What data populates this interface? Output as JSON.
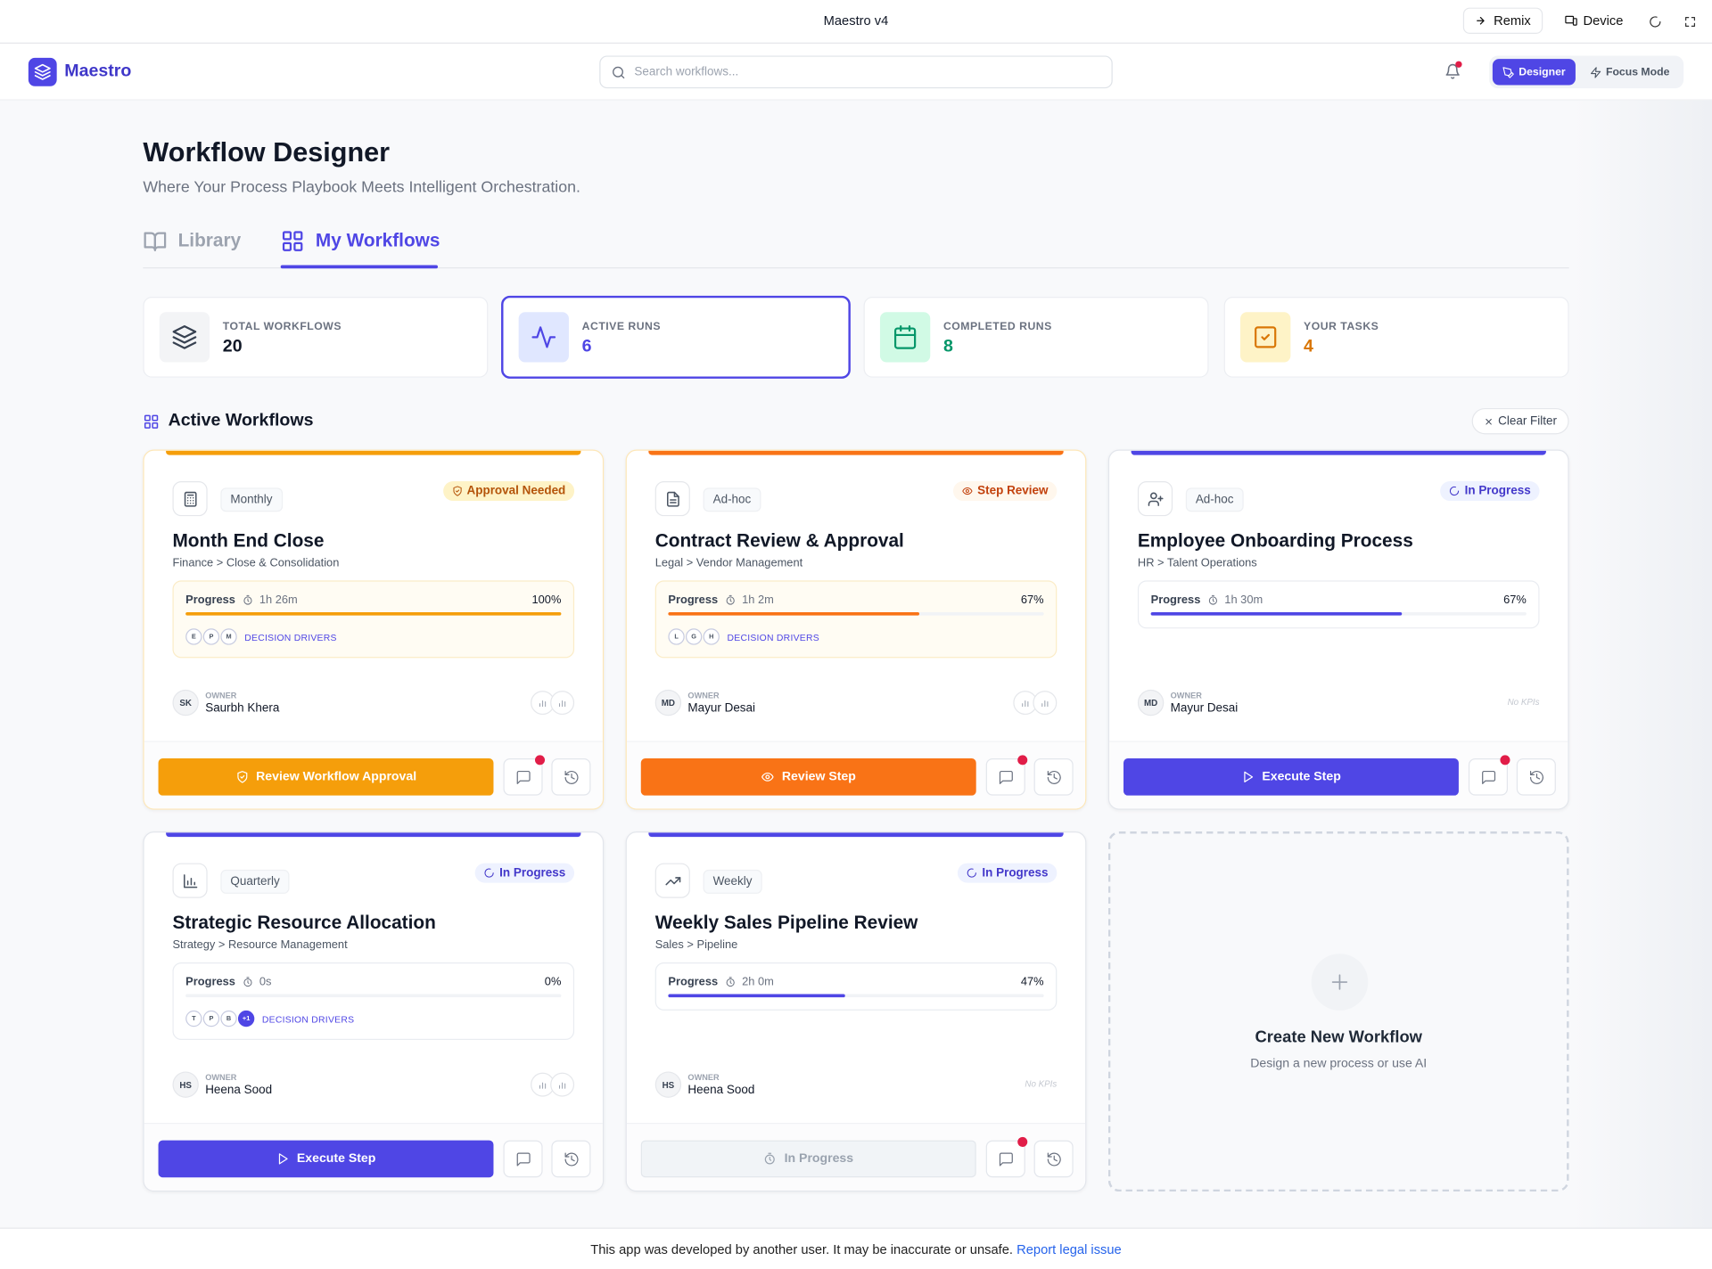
{
  "top_bar": {
    "app_title": "Maestro v4",
    "buttons": [
      "Remix",
      "Device"
    ]
  },
  "header": {
    "brand": "Maestro",
    "search_placeholder": "Search workflows...",
    "modes": [
      "Designer",
      "Focus Mode"
    ]
  },
  "page": {
    "title": "Workflow Designer",
    "subtitle": "Where Your Process Playbook Meets Intelligent Orchestration.",
    "tabs": [
      "Library",
      "My Workflows"
    ]
  },
  "stats": [
    {
      "label": "TOTAL WORKFLOWS",
      "value": 20,
      "color": "#111827"
    },
    {
      "label": "ACTIVE RUNS",
      "value": 6,
      "color": "#4f46e5"
    },
    {
      "label": "COMPLETED RUNS",
      "value": 8,
      "color": "#059669"
    },
    {
      "label": "YOUR TASKS",
      "value": 4,
      "color": "#d97706"
    }
  ],
  "section": {
    "title": "Active Workflows",
    "clear_filter": "Clear Filter"
  },
  "workflows": [
    {
      "frequency": "Monthly",
      "badge": "Approval Needed",
      "title": "Month End Close",
      "path": "Finance > Close & Consolidation",
      "progress_label": "Progress",
      "duration": "1h 26m",
      "progress": "100%",
      "drivers": [
        "E",
        "P",
        "M"
      ],
      "drivers_label": "DECISION DRIVERS",
      "owner_initials": "SK",
      "owner_label": "OWNER",
      "owner": "Saurbh Khera",
      "action": "Review Workflow Approval",
      "accent": "#f59e0b",
      "unread": true
    },
    {
      "frequency": "Ad-hoc",
      "badge": "Step Review",
      "title": "Contract Review & Approval",
      "path": "Legal > Vendor Management",
      "progress_label": "Progress",
      "duration": "1h 2m",
      "progress": "67%",
      "drivers": [
        "L",
        "G",
        "H"
      ],
      "drivers_label": "DECISION DRIVERS",
      "owner_initials": "MD",
      "owner_label": "OWNER",
      "owner": "Mayur Desai",
      "action": "Review Step",
      "accent": "#f97316",
      "unread": true
    },
    {
      "frequency": "Ad-hoc",
      "badge": "In Progress",
      "title": "Employee Onboarding Process",
      "path": "HR > Talent Operations",
      "progress_label": "Progress",
      "duration": "1h 30m",
      "progress": "67%",
      "owner_initials": "MD",
      "owner_label": "OWNER",
      "owner": "Mayur Desai",
      "kpi": "No KPIs",
      "action": "Execute Step",
      "accent": "#4f46e5",
      "unread": true
    },
    {
      "frequency": "Quarterly",
      "badge": "In Progress",
      "title": "Strategic Resource Allocation",
      "path": "Strategy > Resource Management",
      "progress_label": "Progress",
      "duration": "0s",
      "progress": "0%",
      "drivers": [
        "T",
        "P",
        "B",
        "+1"
      ],
      "drivers_label": "DECISION DRIVERS",
      "owner_initials": "HS",
      "owner_label": "OWNER",
      "owner": "Heena Sood",
      "action": "Execute Step",
      "accent": "#4f46e5",
      "unread": false
    },
    {
      "frequency": "Weekly",
      "badge": "In Progress",
      "title": "Weekly Sales Pipeline Review",
      "path": "Sales > Pipeline",
      "progress_label": "Progress",
      "duration": "2h 0m",
      "progress": "47%",
      "owner_initials": "HS",
      "owner_label": "OWNER",
      "owner": "Heena Sood",
      "kpi": "No KPIs",
      "action": "In Progress",
      "action_disabled": true,
      "accent": "#4f46e5",
      "unread": true
    }
  ],
  "create_card": {
    "title": "Create New Workflow",
    "subtitle": "Design a new process or use AI"
  },
  "footer": {
    "text": "This app was developed by another user. It may be inaccurate or unsafe.",
    "link": "Report legal issue"
  }
}
